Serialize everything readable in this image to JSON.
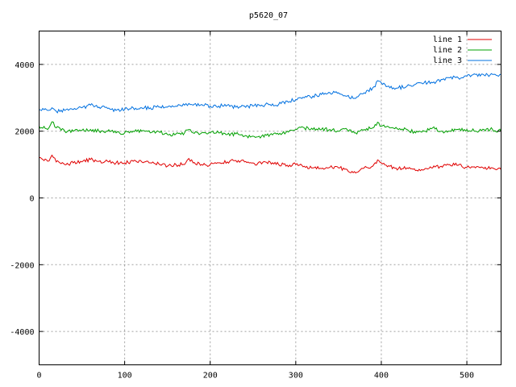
{
  "chart_data": {
    "type": "line",
    "title": "p5620_07",
    "xlabel": "",
    "ylabel": "",
    "xlim": [
      0,
      540
    ],
    "ylim": [
      -5000,
      5000
    ],
    "xticks": [
      0,
      100,
      200,
      300,
      400,
      500
    ],
    "yticks": [
      -4000,
      -2000,
      0,
      2000,
      4000
    ],
    "grid": true,
    "legend_position": "top-right",
    "x": [
      0,
      10,
      15,
      20,
      30,
      40,
      50,
      60,
      70,
      80,
      90,
      100,
      110,
      120,
      130,
      140,
      150,
      160,
      170,
      175,
      180,
      190,
      200,
      210,
      220,
      230,
      240,
      250,
      260,
      270,
      280,
      290,
      300,
      310,
      320,
      330,
      340,
      350,
      360,
      370,
      380,
      390,
      397,
      400,
      410,
      420,
      430,
      440,
      450,
      460,
      470,
      480,
      490,
      500,
      510,
      520,
      530,
      540
    ],
    "series": [
      {
        "name": "line 1",
        "color": "#e00000",
        "values": [
          1200,
          1100,
          1280,
          1080,
          1000,
          1050,
          1080,
          1150,
          1100,
          1100,
          1050,
          1050,
          1100,
          1080,
          1050,
          1020,
          950,
          1000,
          1000,
          1180,
          1050,
          1000,
          1000,
          1050,
          1080,
          1120,
          1080,
          1050,
          1020,
          1080,
          1000,
          980,
          1000,
          950,
          900,
          880,
          920,
          900,
          850,
          750,
          900,
          950,
          1120,
          1050,
          950,
          880,
          900,
          820,
          850,
          900,
          950,
          1000,
          980,
          920,
          900,
          880,
          900,
          850
        ]
      },
      {
        "name": "line 2",
        "color": "#00a000",
        "values": [
          2150,
          2050,
          2280,
          2100,
          2000,
          2000,
          2020,
          2050,
          2000,
          2000,
          1950,
          1950,
          2000,
          2000,
          1950,
          1980,
          1900,
          1920,
          1950,
          2050,
          1950,
          1950,
          1950,
          1950,
          1900,
          1920,
          1850,
          1850,
          1850,
          1900,
          1900,
          2000,
          2050,
          2100,
          2050,
          2050,
          2050,
          2000,
          2050,
          1950,
          2050,
          2100,
          2250,
          2150,
          2100,
          2050,
          2050,
          1950,
          2000,
          2100,
          2000,
          2000,
          2050,
          2050,
          2000,
          2050,
          2050,
          2000
        ]
      },
      {
        "name": "line 3",
        "color": "#0070e0",
        "values": [
          2650,
          2620,
          2700,
          2600,
          2620,
          2650,
          2700,
          2780,
          2720,
          2680,
          2620,
          2650,
          2700,
          2700,
          2700,
          2720,
          2720,
          2750,
          2780,
          2830,
          2780,
          2800,
          2750,
          2750,
          2780,
          2720,
          2750,
          2750,
          2780,
          2800,
          2800,
          2900,
          2950,
          3000,
          3050,
          3100,
          3150,
          3150,
          3050,
          2980,
          3150,
          3300,
          3500,
          3450,
          3300,
          3300,
          3350,
          3400,
          3450,
          3450,
          3550,
          3600,
          3600,
          3650,
          3700,
          3680,
          3700,
          3700
        ]
      }
    ]
  }
}
